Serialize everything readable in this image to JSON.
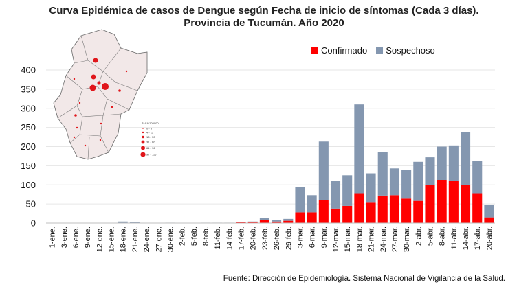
{
  "title": {
    "line1": "Curva Epidémica de casos de Dengue según Fecha de inicio de síntomas (Cada 3 días).",
    "line2": "Provincia de Tucumán. Año 2020"
  },
  "legend": {
    "confirmado": "Confirmado",
    "sospechoso": "Sospechoso"
  },
  "colors": {
    "confirmado": "#ff0000",
    "sospechoso": "#8497b0",
    "map_fill": "#f2e8e8",
    "map_dot": "#e0161b"
  },
  "source": "Fuente: Dirección de Epidemiología. Sistema Nacional de Vigilancia de la Salud.",
  "map_legend": {
    "title": "TASA/100000",
    "ranges": [
      "0 - 3",
      "4 - 12",
      "13 - 30",
      "31 - 60",
      "61 - 96",
      "97 - 116"
    ]
  },
  "chart_data": {
    "type": "bar",
    "stacked": true,
    "title": "Curva Epidémica de casos de Dengue según Fecha de inicio de síntomas (Cada 3 días). Provincia de Tucumán. Año 2020",
    "xlabel": "",
    "ylabel": "",
    "ylim": [
      0,
      400
    ],
    "yticks": [
      0,
      50,
      100,
      150,
      200,
      250,
      300,
      350,
      400
    ],
    "categories": [
      "1-ene.",
      "3-ene.",
      "6-ene.",
      "9-ene.",
      "12-ene.",
      "15-ene.",
      "18-ene.",
      "21-ene.",
      "24-ene.",
      "27-ene.",
      "30-ene.",
      "2-feb.",
      "5-feb.",
      "8-feb.",
      "11-feb.",
      "14-feb.",
      "17-feb.",
      "20-feb.",
      "23-feb.",
      "26-feb.",
      "29-feb.",
      "3-mar.",
      "6-mar.",
      "9-mar.",
      "12-mar.",
      "15-mar.",
      "18-mar.",
      "21-mar.",
      "24-mar.",
      "27-mar.",
      "30-mar.",
      "2-abr.",
      "5-abr.",
      "8-abr.",
      "11-abr.",
      "14-abr.",
      "17-abr.",
      "20-abr."
    ],
    "series": [
      {
        "name": "Confirmado",
        "values": [
          0,
          0,
          0,
          0,
          0,
          0,
          0,
          0,
          0,
          0,
          0,
          0,
          0,
          0,
          0,
          0,
          2,
          3,
          8,
          4,
          6,
          28,
          28,
          60,
          38,
          45,
          78,
          55,
          72,
          73,
          64,
          58,
          100,
          113,
          110,
          100,
          78,
          15
        ]
      },
      {
        "name": "Sospechoso",
        "values": [
          0,
          0,
          0,
          0,
          0,
          0,
          4,
          2,
          0,
          0,
          1,
          0,
          0,
          1,
          1,
          1,
          1,
          1,
          5,
          4,
          5,
          67,
          45,
          153,
          72,
          80,
          232,
          75,
          113,
          70,
          75,
          102,
          72,
          87,
          93,
          138,
          84,
          32
        ]
      }
    ],
    "legend_position": "top-right"
  }
}
